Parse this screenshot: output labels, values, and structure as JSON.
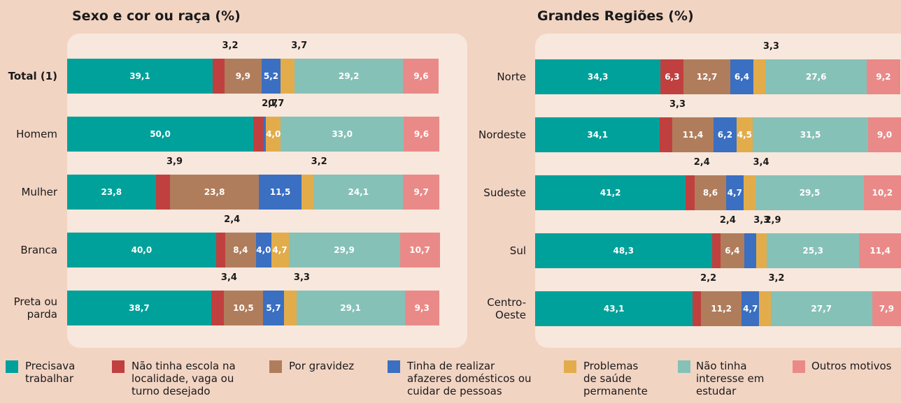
{
  "chart_data": [
    {
      "type": "bar",
      "orientation": "horizontal",
      "title": "Sexo e cor ou raça (%)",
      "categories": [
        "Total (1)",
        "Homem",
        "Mulher",
        "Branca",
        "Preta ou\nparda"
      ],
      "xlim": [
        0,
        100
      ],
      "series": [
        {
          "name": "Precisava trabalhar",
          "color": "#00a19a",
          "values": [
            39.1,
            50.0,
            23.8,
            40.0,
            38.7
          ],
          "value_labels": [
            "39,1",
            "50,0",
            "23,8",
            "40,0",
            "38,7"
          ]
        },
        {
          "name": "Não tinha escola na localidade, vaga ou turno desejado",
          "color": "#c0403f",
          "values": [
            3.2,
            2.7,
            3.9,
            2.4,
            3.4
          ],
          "value_labels": [
            "3,2",
            "2,7",
            "3,9",
            "2,4",
            "3,4"
          ]
        },
        {
          "name": "Por gravidez",
          "color": "#b07d5c",
          "values": [
            9.9,
            null,
            23.8,
            8.4,
            10.5
          ],
          "value_labels": [
            "9,9",
            null,
            "23,8",
            "8,4",
            "10,5"
          ]
        },
        {
          "name": "Tinha de realizar afazeres domésticos ou cuidar de pessoas",
          "color": "#3a6fc2",
          "values": [
            5.2,
            0.7,
            11.5,
            4.0,
            5.7
          ],
          "value_labels": [
            "5,2",
            "0,7",
            "11,5",
            "4,0",
            "5,7"
          ]
        },
        {
          "name": "Problemas de saúde permanente",
          "color": "#e3ac4b",
          "values": [
            3.7,
            4.0,
            3.2,
            4.7,
            3.3
          ],
          "value_labels": [
            "3,7",
            "4,0",
            "3,2",
            "4,7",
            "3,3"
          ]
        },
        {
          "name": "Não tinha interesse em estudar",
          "color": "#86c1b8",
          "values": [
            29.2,
            33.0,
            24.1,
            29.9,
            29.1
          ],
          "value_labels": [
            "29,2",
            "33,0",
            "24,1",
            "29,9",
            "29,1"
          ]
        },
        {
          "name": "Outros motivos",
          "color": "#ea8a88",
          "values": [
            9.6,
            9.6,
            9.7,
            10.7,
            9.3
          ],
          "value_labels": [
            "9,6",
            "9,6",
            "9,7",
            "10,7",
            "9,3"
          ]
        }
      ]
    },
    {
      "type": "bar",
      "orientation": "horizontal",
      "title": "Grandes Regiões (%)",
      "categories": [
        "Norte",
        "Nordeste",
        "Sudeste",
        "Sul",
        "Centro-\nOeste"
      ],
      "xlim": [
        0,
        100
      ],
      "series": [
        {
          "color": "#00a19a",
          "values": [
            34.3,
            34.1,
            41.2,
            48.3,
            43.1
          ],
          "value_labels": [
            "34,3",
            "34,1",
            "41,2",
            "48,3",
            "43,1"
          ]
        },
        {
          "color": "#c0403f",
          "values": [
            6.3,
            3.3,
            2.4,
            2.4,
            2.2
          ],
          "value_labels": [
            "6,3",
            "3,3",
            "2,4",
            "2,4",
            "2,2"
          ]
        },
        {
          "color": "#b07d5c",
          "values": [
            12.7,
            11.4,
            8.6,
            6.4,
            11.2
          ],
          "value_labels": [
            "12,7",
            "11,4",
            "8,6",
            "6,4",
            "11,2"
          ]
        },
        {
          "color": "#3a6fc2",
          "values": [
            6.4,
            6.2,
            4.7,
            3.3,
            4.7
          ],
          "value_labels": [
            "6,4",
            "6,2",
            "4,7",
            "3,3",
            "4,7"
          ]
        },
        {
          "color": "#e3ac4b",
          "values": [
            3.3,
            4.5,
            3.4,
            2.9,
            3.2
          ],
          "value_labels": [
            "3,3",
            "4,5",
            "3,4",
            "2,9",
            "3,2"
          ]
        },
        {
          "color": "#86c1b8",
          "values": [
            27.6,
            31.5,
            29.5,
            25.3,
            27.7
          ],
          "value_labels": [
            "27,6",
            "31,5",
            "29,5",
            "25,3",
            "27,7"
          ]
        },
        {
          "color": "#ea8a88",
          "values": [
            9.2,
            9.0,
            10.2,
            11.4,
            7.9
          ],
          "value_labels": [
            "9,2",
            "9,0",
            "10,2",
            "11,4",
            "7,9"
          ]
        }
      ]
    }
  ]
}
